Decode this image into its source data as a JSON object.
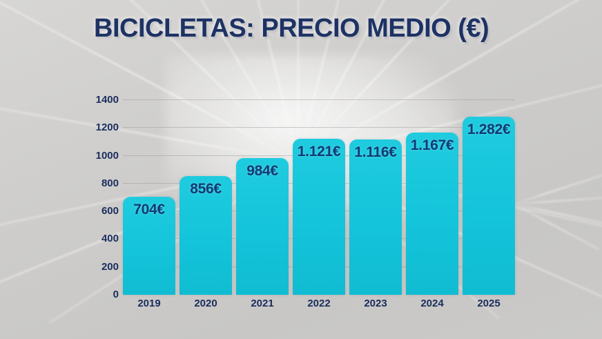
{
  "title": "BICICLETAS: PRECIO MEDIO (€)",
  "colors": {
    "bar": "#14c4da",
    "bar_top": "#1fcbdf",
    "bar_bottom": "#10bcd2",
    "title_text": "#1e3264",
    "value_label": "#123a74",
    "axis_label": "#1b2d5e",
    "background": "#cdccca"
  },
  "chart_data": {
    "type": "bar",
    "title": "BICICLETAS: PRECIO MEDIO (€)",
    "categories": [
      "2019",
      "2020",
      "2021",
      "2022",
      "2023",
      "2024",
      "2025"
    ],
    "values": [
      704,
      856,
      984,
      1121,
      1116,
      1167,
      1282
    ],
    "value_labels": [
      "704€",
      "856€",
      "984€",
      "1.121€",
      "1.116€",
      "1.167€",
      "1.282€"
    ],
    "xlabel": "",
    "ylabel": "",
    "ylim": [
      0,
      1400
    ],
    "yticks": [
      0,
      200,
      400,
      600,
      800,
      1000,
      1200,
      1400
    ],
    "grid": true,
    "legend": false
  }
}
